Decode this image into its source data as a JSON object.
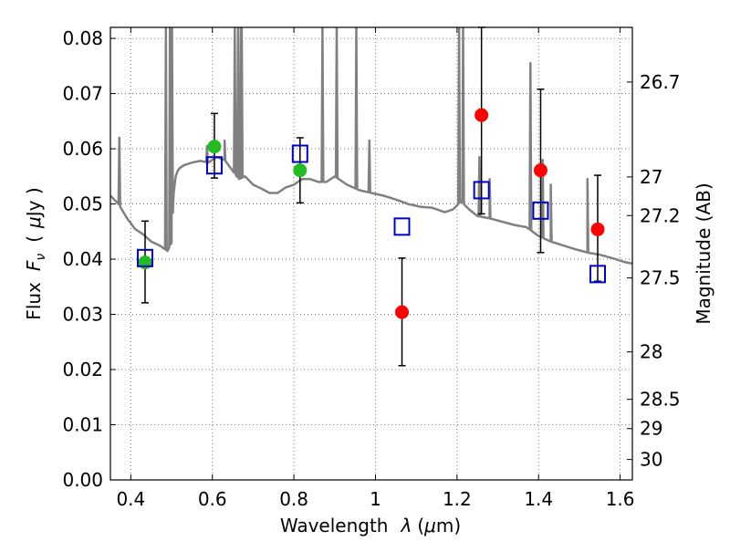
{
  "chart_data": {
    "type": "scatter",
    "xlabel": "Wavelength",
    "xlabel_symbol": "λ",
    "xlabel_unit_open": "(",
    "xlabel_unit_mu": "μ",
    "xlabel_unit_rest": "m)",
    "ylabel": "Flux",
    "ylabel_symbol": "F",
    "ylabel_subscript": "ν",
    "ylabel_unit_open": "(",
    "ylabel_unit_mu": "μ",
    "ylabel_unit_rest": "Jy )",
    "y2label": "Magnitude (AB)",
    "xlim": [
      0.35,
      1.63
    ],
    "ylim": [
      0.0,
      0.082
    ],
    "grid": true,
    "x_ticks": [
      {
        "value": 0.4,
        "label": "0.4"
      },
      {
        "value": 0.6,
        "label": "0.6"
      },
      {
        "value": 0.8,
        "label": "0.8"
      },
      {
        "value": 1.0,
        "label": "1"
      },
      {
        "value": 1.2,
        "label": "1.2"
      },
      {
        "value": 1.4,
        "label": "1.4"
      },
      {
        "value": 1.6,
        "label": "1.6"
      }
    ],
    "y_ticks": [
      {
        "value": 0.0,
        "label": "0.00"
      },
      {
        "value": 0.01,
        "label": "0.01"
      },
      {
        "value": 0.02,
        "label": "0.02"
      },
      {
        "value": 0.03,
        "label": "0.03"
      },
      {
        "value": 0.04,
        "label": "0.04"
      },
      {
        "value": 0.05,
        "label": "0.05"
      },
      {
        "value": 0.06,
        "label": "0.06"
      },
      {
        "value": 0.07,
        "label": "0.07"
      },
      {
        "value": 0.08,
        "label": "0.08"
      }
    ],
    "mag_ticks": [
      {
        "flux": 0.0721,
        "label": "26.7"
      },
      {
        "flux": 0.0549,
        "label": "27"
      },
      {
        "flux": 0.0479,
        "label": "27.2"
      },
      {
        "flux": 0.0366,
        "label": "27.5"
      },
      {
        "flux": 0.0232,
        "label": "28"
      },
      {
        "flux": 0.0146,
        "label": "28.5"
      },
      {
        "flux": 0.0093,
        "label": "29"
      },
      {
        "flux": 0.0037,
        "label": "30"
      }
    ],
    "series": [
      {
        "kind": "model-spectrum",
        "color": "#808080",
        "x": [
          0.35,
          0.37,
          0.39,
          0.41,
          0.43,
          0.45,
          0.47,
          0.49,
          0.5,
          0.505,
          0.51,
          0.515,
          0.52,
          0.53,
          0.55,
          0.57,
          0.59,
          0.61,
          0.63,
          0.65,
          0.66,
          0.665,
          0.68,
          0.7,
          0.72,
          0.74,
          0.76,
          0.78,
          0.8,
          0.82,
          0.84,
          0.86,
          0.88,
          0.9,
          0.93,
          0.96,
          0.99,
          1.02,
          1.05,
          1.08,
          1.11,
          1.14,
          1.17,
          1.19,
          1.21,
          1.23,
          1.25,
          1.28,
          1.31,
          1.34,
          1.37,
          1.4,
          1.43,
          1.46,
          1.49,
          1.52,
          1.55,
          1.58,
          1.61,
          1.63
        ],
        "y": [
          0.0515,
          0.05,
          0.0475,
          0.0455,
          0.0445,
          0.0432,
          0.0425,
          0.0415,
          0.043,
          0.052,
          0.055,
          0.056,
          0.0565,
          0.057,
          0.0575,
          0.0578,
          0.0575,
          0.0585,
          0.058,
          0.056,
          0.055,
          0.0545,
          0.055,
          0.0535,
          0.0528,
          0.052,
          0.052,
          0.053,
          0.0535,
          0.0545,
          0.0545,
          0.054,
          0.054,
          0.055,
          0.0535,
          0.0525,
          0.052,
          0.0515,
          0.0508,
          0.05,
          0.0495,
          0.0493,
          0.0485,
          0.049,
          0.0505,
          0.049,
          0.0478,
          0.0474,
          0.0468,
          0.0462,
          0.0458,
          0.0442,
          0.0432,
          0.0425,
          0.0418,
          0.0412,
          0.0408,
          0.0402,
          0.0395,
          0.0392
        ]
      },
      {
        "kind": "spectrum-emission-lines",
        "color": "#808080",
        "lines": [
          {
            "x": 0.372,
            "peak": 0.062
          },
          {
            "x": 0.486,
            "peak": 0.082
          },
          {
            "x": 0.496,
            "peak": 0.082
          },
          {
            "x": 0.501,
            "peak": 0.082
          },
          {
            "x": 0.587,
            "peak": 0.0605
          },
          {
            "x": 0.63,
            "peak": 0.0615
          },
          {
            "x": 0.655,
            "peak": 0.082
          },
          {
            "x": 0.663,
            "peak": 0.082
          },
          {
            "x": 0.67,
            "peak": 0.082
          },
          {
            "x": 0.672,
            "peak": 0.082
          },
          {
            "x": 0.87,
            "peak": 0.082
          },
          {
            "x": 0.905,
            "peak": 0.082
          },
          {
            "x": 0.953,
            "peak": 0.082
          },
          {
            "x": 0.985,
            "peak": 0.0615
          },
          {
            "x": 1.205,
            "peak": 0.082
          },
          {
            "x": 1.215,
            "peak": 0.082
          },
          {
            "x": 1.255,
            "peak": 0.0585
          },
          {
            "x": 1.28,
            "peak": 0.0545
          },
          {
            "x": 1.38,
            "peak": 0.0755
          },
          {
            "x": 1.41,
            "peak": 0.058
          },
          {
            "x": 1.43,
            "peak": 0.0535
          },
          {
            "x": 1.52,
            "peak": 0.0545
          }
        ]
      },
      {
        "kind": "observed-upper-limits",
        "marker": "circle",
        "color": "#ff0000",
        "points": [
          {
            "x": 1.065,
            "y": 0.0304,
            "lo": 0.0207,
            "hi": 0.0402
          },
          {
            "x": 1.26,
            "y": 0.0661,
            "lo": 0.0482,
            "hi": 0.082
          },
          {
            "x": 1.405,
            "y": 0.0561,
            "lo": 0.0412,
            "hi": 0.0708
          },
          {
            "x": 1.545,
            "y": 0.0454,
            "lo": 0.036,
            "hi": 0.0552
          }
        ]
      },
      {
        "kind": "observed-detections",
        "marker": "circle",
        "color": "#22bb22",
        "points": [
          {
            "x": 0.435,
            "y": 0.0394,
            "lo": 0.0321,
            "hi": 0.0469
          },
          {
            "x": 0.605,
            "y": 0.0604,
            "lo": 0.0547,
            "hi": 0.0664
          },
          {
            "x": 0.815,
            "y": 0.0561,
            "lo": 0.0502,
            "hi": 0.062
          }
        ]
      },
      {
        "kind": "model-photometry",
        "marker": "open-square",
        "color": "#0000cc",
        "points": [
          {
            "x": 0.435,
            "y": 0.0402
          },
          {
            "x": 0.605,
            "y": 0.057
          },
          {
            "x": 0.815,
            "y": 0.0591
          },
          {
            "x": 1.065,
            "y": 0.0459
          },
          {
            "x": 1.26,
            "y": 0.0525
          },
          {
            "x": 1.405,
            "y": 0.0488
          },
          {
            "x": 1.545,
            "y": 0.0373
          }
        ]
      }
    ]
  }
}
